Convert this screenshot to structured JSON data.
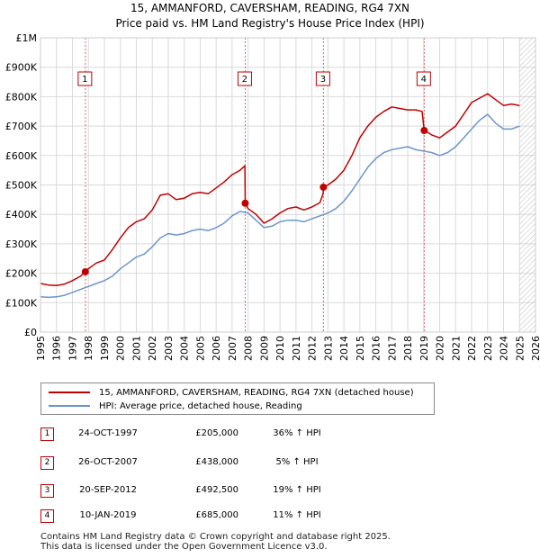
{
  "title_line1": "15, AMMANFORD, CAVERSHAM, READING, RG4 7XN",
  "title_line2": "Price paid vs. HM Land Registry's House Price Index (HPI)",
  "colors": {
    "price_paid": "#c00000",
    "hpi": "#6a95cb",
    "marker_border": "#c00000",
    "grid": "#d9d9d9",
    "plot_bg": "#ffffff"
  },
  "legend": {
    "price_paid_label": "15, AMMANFORD, CAVERSHAM, READING, RG4 7XN (detached house)",
    "hpi_label": "HPI: Average price, detached house, Reading"
  },
  "sales": [
    {
      "num": "1",
      "date": "24-OCT-1997",
      "price": "£205,000",
      "hpi_change": "36% ↑ HPI"
    },
    {
      "num": "2",
      "date": "26-OCT-2007",
      "price": "£438,000",
      "hpi_change": "5% ↑ HPI"
    },
    {
      "num": "3",
      "date": "20-SEP-2012",
      "price": "£492,500",
      "hpi_change": "19% ↑ HPI"
    },
    {
      "num": "4",
      "date": "10-JAN-2019",
      "price": "£685,000",
      "hpi_change": "11% ↑ HPI"
    }
  ],
  "footer_line1": "Contains HM Land Registry data © Crown copyright and database right 2025.",
  "footer_line2": "This data is licensed under the Open Government Licence v3.0.",
  "chart_data": {
    "type": "line",
    "title": "15, AMMANFORD, CAVERSHAM, READING, RG4 7XN — Price paid vs. HM Land Registry's House Price Index (HPI)",
    "xlabel": "",
    "ylabel": "",
    "xlim": [
      1995,
      2026
    ],
    "ylim": [
      0,
      1000000
    ],
    "y_ticks": [
      0,
      100000,
      200000,
      300000,
      400000,
      500000,
      600000,
      700000,
      800000,
      900000,
      1000000
    ],
    "y_tick_labels": [
      "£0",
      "£100K",
      "£200K",
      "£300K",
      "£400K",
      "£500K",
      "£600K",
      "£700K",
      "£800K",
      "£900K",
      "£1M"
    ],
    "x_ticks": [
      1995,
      1996,
      1997,
      1998,
      1999,
      2000,
      2001,
      2002,
      2003,
      2004,
      2005,
      2006,
      2007,
      2008,
      2009,
      2010,
      2011,
      2012,
      2013,
      2014,
      2015,
      2016,
      2017,
      2018,
      2019,
      2020,
      2021,
      2022,
      2023,
      2024,
      2025,
      2026
    ],
    "x_tick_labels": [
      "1995",
      "1996",
      "1997",
      "1998",
      "1999",
      "2000",
      "2001",
      "2002",
      "2003",
      "2004",
      "2005",
      "2006",
      "2007",
      "2008",
      "2009",
      "2010",
      "2011",
      "2012",
      "2013",
      "2014",
      "2015",
      "2016",
      "2017",
      "2018",
      "2019",
      "2020",
      "2021",
      "2022",
      "2023",
      "2024",
      "2025",
      "2026"
    ],
    "grid": true,
    "forecast_hatch_from": 2025.0,
    "series": [
      {
        "name": "15, AMMANFORD, CAVERSHAM, READING, RG4 7XN (detached house)",
        "color": "#c00000",
        "x": [
          1995.0,
          1995.5,
          1996.0,
          1996.5,
          1997.0,
          1997.5,
          1997.81,
          1998.0,
          1998.5,
          1999.0,
          1999.5,
          2000.0,
          2000.5,
          2001.0,
          2001.5,
          2002.0,
          2002.5,
          2003.0,
          2003.5,
          2004.0,
          2004.5,
          2005.0,
          2005.5,
          2006.0,
          2006.5,
          2007.0,
          2007.5,
          2007.8,
          2007.82,
          2008.0,
          2008.5,
          2009.0,
          2009.5,
          2010.0,
          2010.5,
          2011.0,
          2011.5,
          2012.0,
          2012.5,
          2012.7,
          2012.72,
          2013.0,
          2013.5,
          2014.0,
          2014.5,
          2015.0,
          2015.5,
          2016.0,
          2016.5,
          2017.0,
          2017.5,
          2018.0,
          2018.5,
          2018.9,
          2019.03,
          2019.2,
          2019.5,
          2020.0,
          2020.5,
          2021.0,
          2021.5,
          2022.0,
          2022.5,
          2023.0,
          2023.5,
          2024.0,
          2024.5,
          2025.0
        ],
        "values": [
          165000,
          160000,
          158000,
          163000,
          175000,
          190000,
          205000,
          215000,
          235000,
          245000,
          280000,
          320000,
          355000,
          375000,
          385000,
          415000,
          465000,
          470000,
          450000,
          455000,
          470000,
          475000,
          470000,
          490000,
          510000,
          535000,
          550000,
          565000,
          438000,
          420000,
          400000,
          370000,
          385000,
          405000,
          420000,
          425000,
          415000,
          425000,
          440000,
          470000,
          492500,
          500000,
          520000,
          550000,
          600000,
          660000,
          700000,
          730000,
          750000,
          765000,
          760000,
          755000,
          755000,
          750000,
          685000,
          680000,
          670000,
          660000,
          680000,
          700000,
          740000,
          780000,
          795000,
          810000,
          790000,
          770000,
          775000,
          770000
        ]
      },
      {
        "name": "HPI: Average price, detached house, Reading",
        "color": "#6a95cb",
        "x": [
          1995.0,
          1995.5,
          1996.0,
          1996.5,
          1997.0,
          1997.5,
          1998.0,
          1998.5,
          1999.0,
          1999.5,
          2000.0,
          2000.5,
          2001.0,
          2001.5,
          2002.0,
          2002.5,
          2003.0,
          2003.5,
          2004.0,
          2004.5,
          2005.0,
          2005.5,
          2006.0,
          2006.5,
          2007.0,
          2007.5,
          2008.0,
          2008.5,
          2009.0,
          2009.5,
          2010.0,
          2010.5,
          2011.0,
          2011.5,
          2012.0,
          2012.5,
          2013.0,
          2013.5,
          2014.0,
          2014.5,
          2015.0,
          2015.5,
          2016.0,
          2016.5,
          2017.0,
          2017.5,
          2018.0,
          2018.5,
          2019.0,
          2019.5,
          2020.0,
          2020.5,
          2021.0,
          2021.5,
          2022.0,
          2022.5,
          2023.0,
          2023.5,
          2024.0,
          2024.5,
          2025.0
        ],
        "values": [
          120000,
          118000,
          120000,
          125000,
          135000,
          145000,
          155000,
          165000,
          175000,
          190000,
          215000,
          235000,
          255000,
          265000,
          290000,
          320000,
          335000,
          330000,
          335000,
          345000,
          350000,
          345000,
          355000,
          370000,
          395000,
          410000,
          405000,
          380000,
          355000,
          360000,
          375000,
          380000,
          380000,
          375000,
          385000,
          395000,
          405000,
          420000,
          445000,
          480000,
          520000,
          560000,
          590000,
          610000,
          620000,
          625000,
          630000,
          620000,
          615000,
          610000,
          600000,
          610000,
          630000,
          660000,
          690000,
          720000,
          740000,
          710000,
          690000,
          690000,
          700000
        ]
      }
    ],
    "markers": [
      {
        "label": "1",
        "x": 1997.81,
        "y": 205000
      },
      {
        "label": "2",
        "x": 2007.82,
        "y": 438000
      },
      {
        "label": "3",
        "x": 2012.72,
        "y": 492500
      },
      {
        "label": "4",
        "x": 2019.03,
        "y": 685000
      }
    ]
  }
}
